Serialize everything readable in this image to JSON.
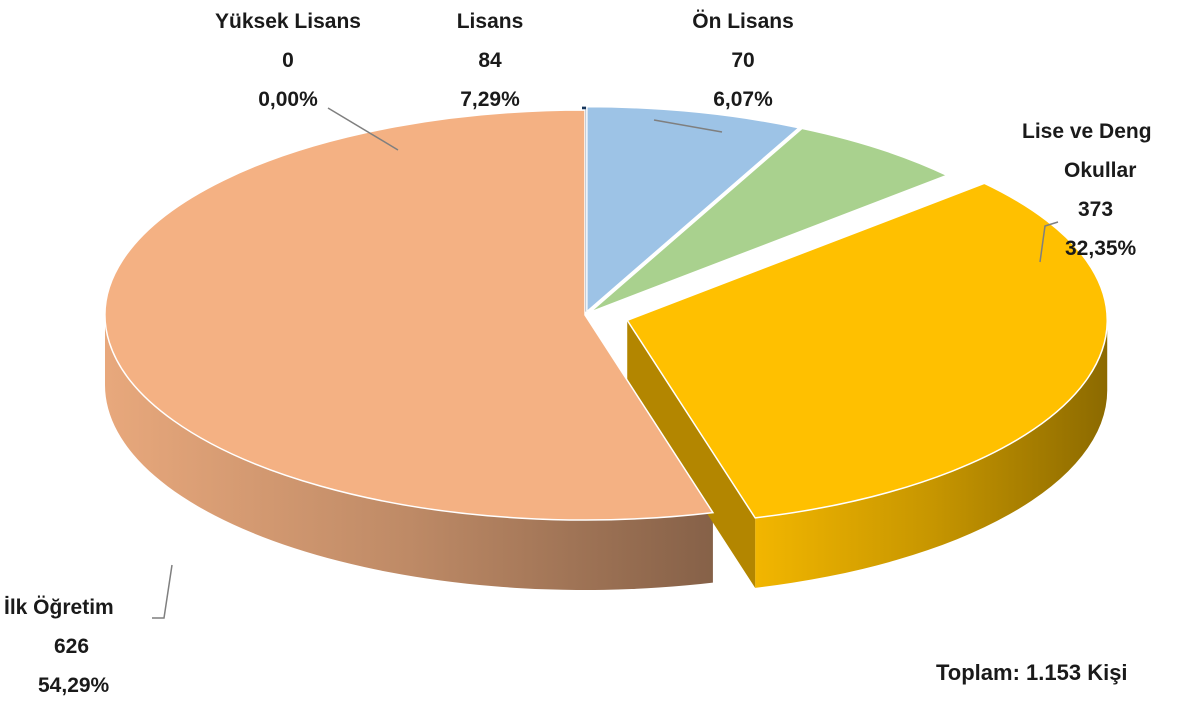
{
  "chart_data": {
    "type": "pie",
    "slices": [
      {
        "name": "Yüksek Lisans",
        "value": 0,
        "percent": "0,00%",
        "color": "#17375e"
      },
      {
        "name": "Lisans",
        "value": 84,
        "percent": "7,29%",
        "color": "#9dc3e6"
      },
      {
        "name": "Ön Lisans",
        "value": 70,
        "percent": "6,07%",
        "color": "#a9d18e"
      },
      {
        "name_line1": "Lise ve Deng",
        "name_line2": "Okullar",
        "value": 373,
        "percent": "32,35%",
        "color": "#ffc000"
      },
      {
        "name": "İlk Öğretim",
        "value": 626,
        "percent": "54,29%",
        "color": "#f4b183"
      }
    ],
    "total_label": "Toplam: 1.153 Kişi"
  }
}
